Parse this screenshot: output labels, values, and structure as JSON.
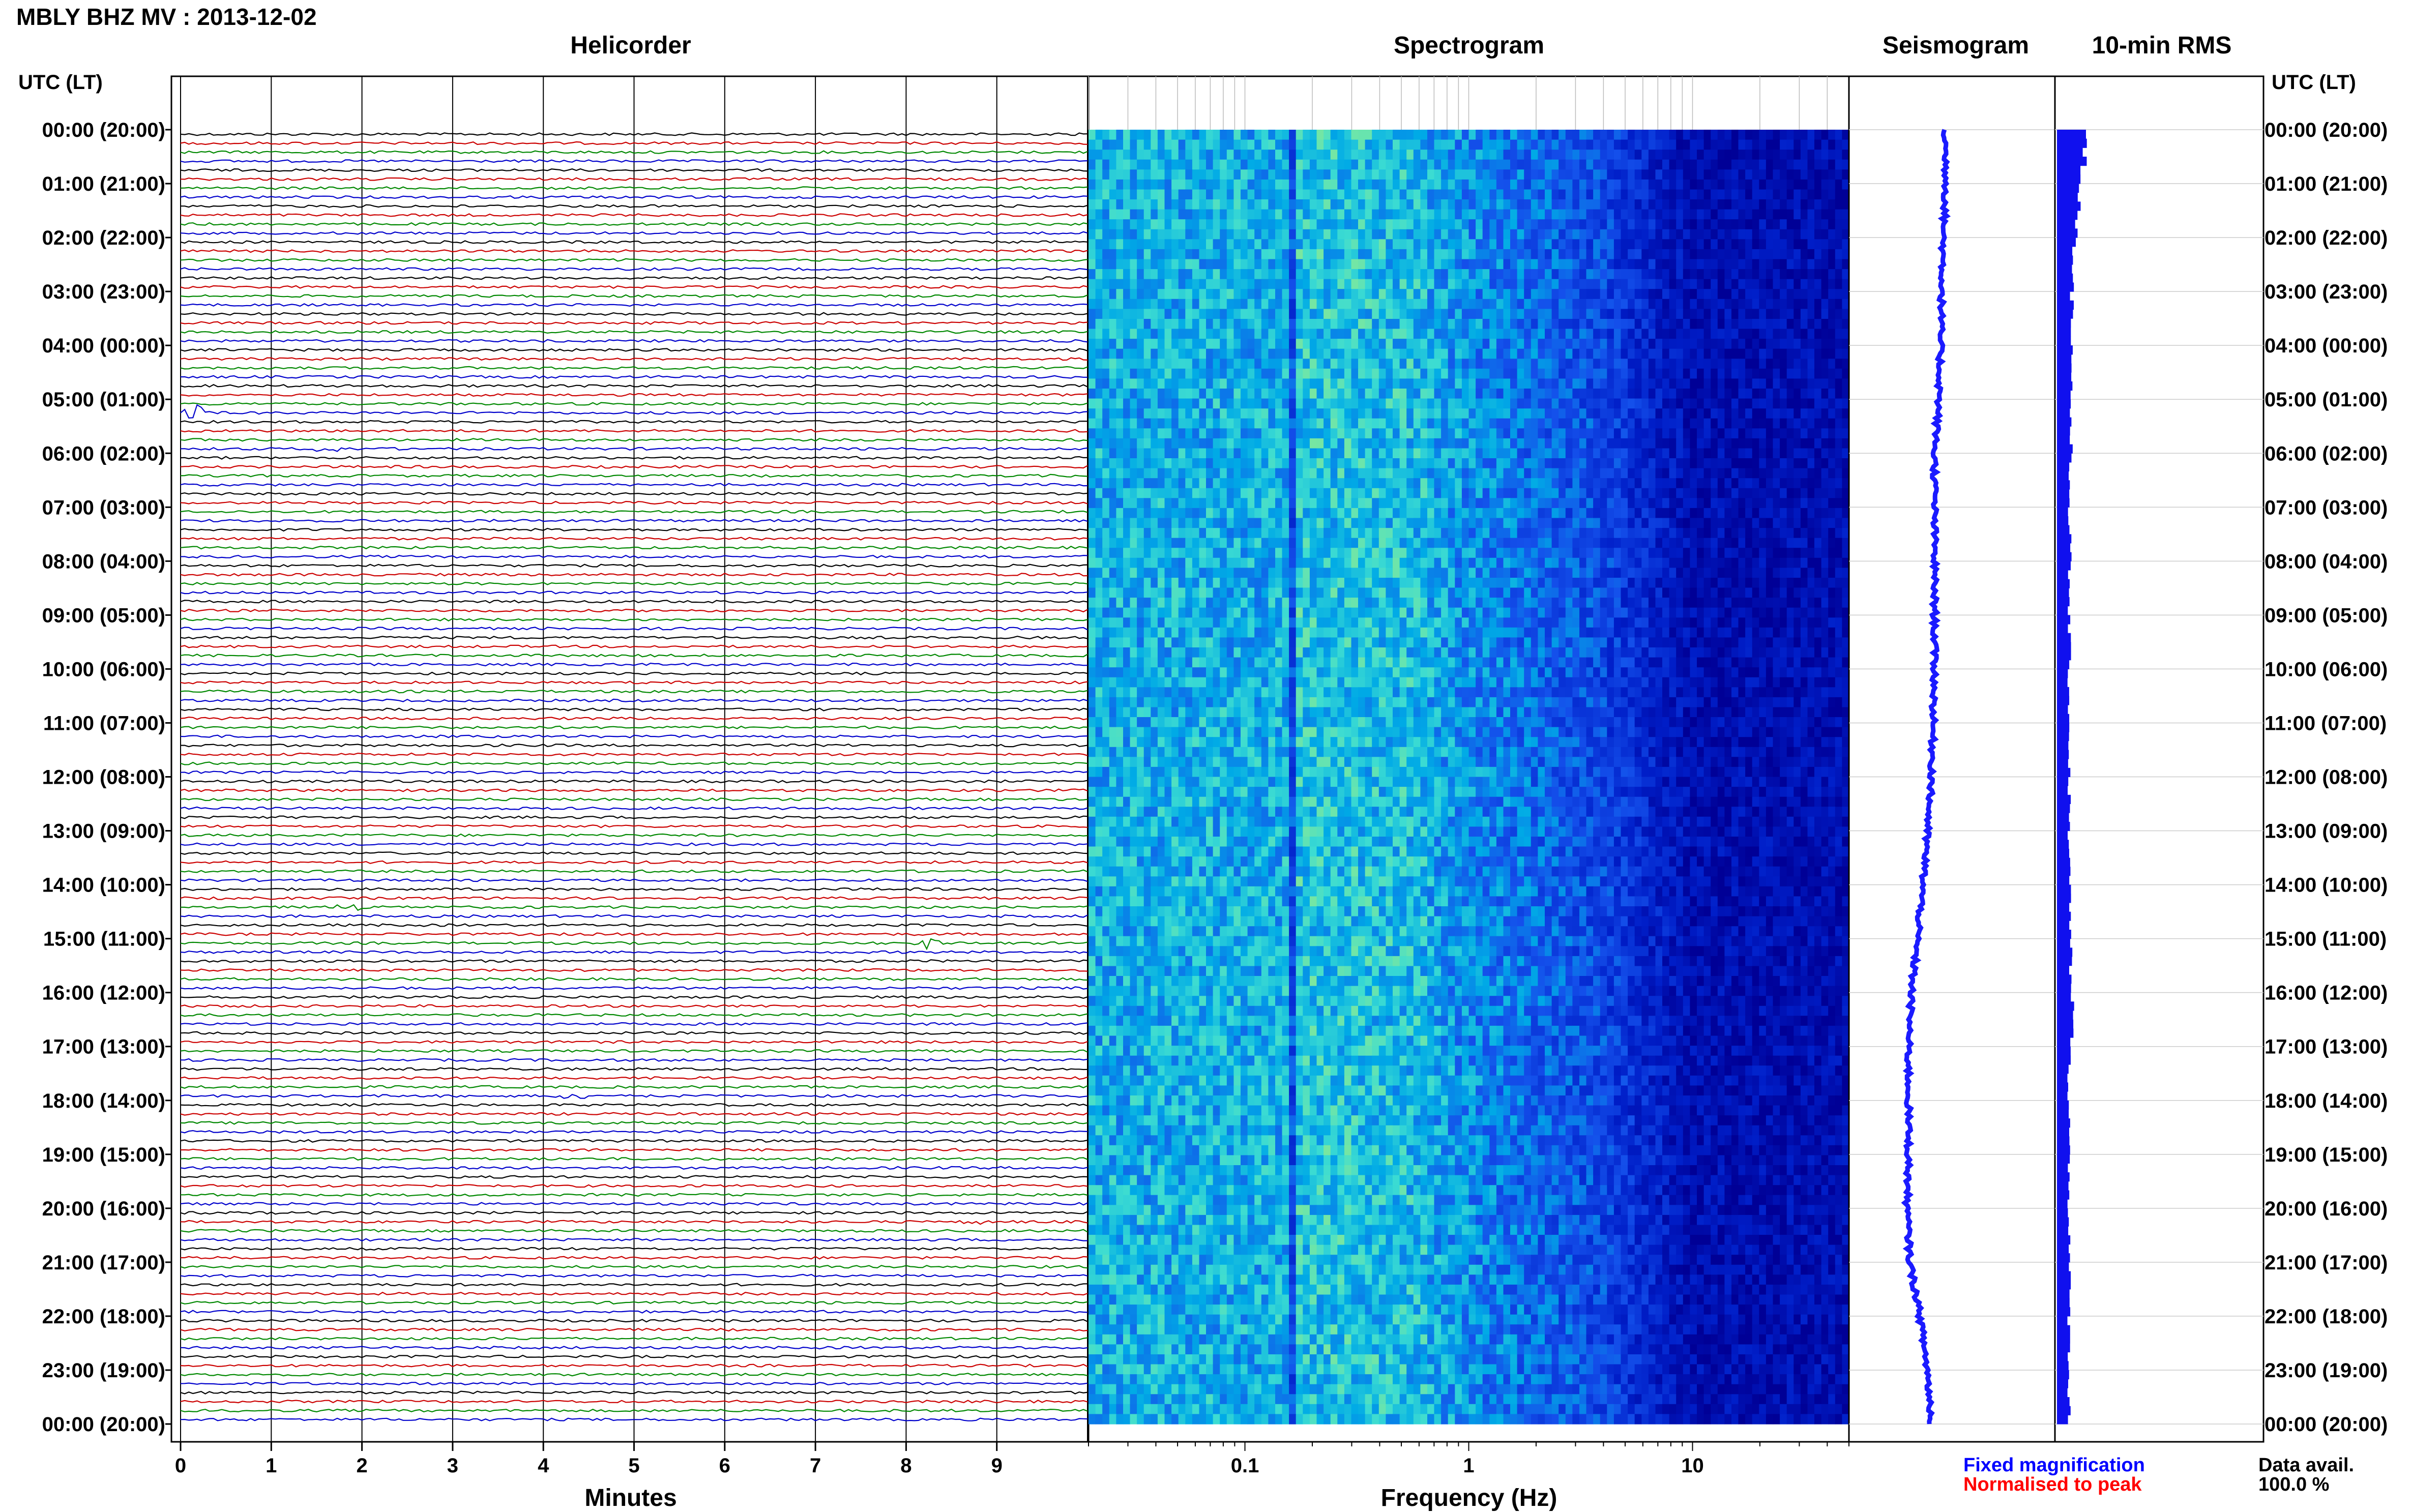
{
  "page": {
    "title": "MBLY BHZ MV : 2013-12-02"
  },
  "panels": {
    "helicorder": "Helicorder",
    "spectrogram": "Spectrogram",
    "seismogram": "Seismogram",
    "rms": "10-min RMS"
  },
  "axes": {
    "left_header": "UTC (LT)",
    "right_header": "UTC (LT)",
    "helicorder_xlabel": "Minutes",
    "spectrogram_xlabel": "Frequency (Hz)"
  },
  "legend": {
    "fixed": "Fixed magnification",
    "normalised": "Normalised to peak",
    "fixed_color": "#0000ff",
    "normalised_color": "#ff0000"
  },
  "availability": {
    "label": "Data avail.",
    "value": "100.0 %"
  },
  "colors": {
    "trace_cycle": [
      "#000000",
      "#cc0000",
      "#008800",
      "#0000cc"
    ],
    "seismogram": "#1a1aff",
    "rms": "#1010ee",
    "grid": "#bbbbbb"
  },
  "chart_data": [
    {
      "type": "line",
      "name": "helicorder",
      "title": "Helicorder",
      "xlabel": "Minutes",
      "x_ticks": [
        "0",
        "1",
        "2",
        "3",
        "4",
        "5",
        "6",
        "7",
        "8",
        "9"
      ],
      "xlim": [
        0,
        10
      ],
      "rows_per_hour": 6,
      "hours": 24,
      "y_ticks_left": [
        "00:00 (20:00)",
        "01:00 (21:00)",
        "02:00 (22:00)",
        "03:00 (23:00)",
        "04:00 (00:00)",
        "05:00 (01:00)",
        "06:00 (02:00)",
        "07:00 (03:00)",
        "08:00 (04:00)",
        "09:00 (05:00)",
        "10:00 (06:00)",
        "11:00 (07:00)",
        "12:00 (08:00)",
        "13:00 (09:00)",
        "14:00 (10:00)",
        "15:00 (11:00)",
        "16:00 (12:00)",
        "17:00 (13:00)",
        "18:00 (14:00)",
        "19:00 (15:00)",
        "20:00 (16:00)",
        "21:00 (17:00)",
        "22:00 (18:00)",
        "23:00 (19:00)",
        "00:00 (20:00)"
      ],
      "events": [
        {
          "row": 31,
          "minute": 0.15,
          "amp": 3
        },
        {
          "row": 35,
          "minute": 1.65,
          "amp": 1.5
        },
        {
          "row": 86,
          "minute": 1.9,
          "amp": 1.5
        },
        {
          "row": 90,
          "minute": 8.25,
          "amp": 2
        },
        {
          "row": 107,
          "minute": 4.3,
          "amp": 1.5
        },
        {
          "row": 121,
          "minute": 8.8,
          "amp": 1.2
        }
      ]
    },
    {
      "type": "heatmap",
      "name": "spectrogram",
      "title": "Spectrogram",
      "xlabel": "Frequency (Hz)",
      "x_scale": "log",
      "xlim": [
        0.02,
        50
      ],
      "x_ticks": [
        "0.1",
        "1",
        "10"
      ]
    },
    {
      "type": "line",
      "name": "seismogram",
      "title": "Seismogram",
      "x_offsets_by_hour": [
        0.45,
        0.46,
        0.44,
        0.43,
        0.42,
        0.41,
        0.38,
        0.38,
        0.38,
        0.38,
        0.38,
        0.37,
        0.36,
        0.33,
        0.3,
        0.26,
        0.22,
        0.2,
        0.2,
        0.2,
        0.19,
        0.21,
        0.28,
        0.33,
        0.36
      ]
    },
    {
      "type": "bar",
      "name": "rms",
      "title": "10-min RMS",
      "values_by_hour": [
        0.9,
        0.7,
        0.55,
        0.5,
        0.48,
        0.45,
        0.42,
        0.42,
        0.4,
        0.4,
        0.4,
        0.4,
        0.4,
        0.4,
        0.42,
        0.45,
        0.5,
        0.4,
        0.4,
        0.4,
        0.4,
        0.4,
        0.4,
        0.4
      ]
    }
  ]
}
